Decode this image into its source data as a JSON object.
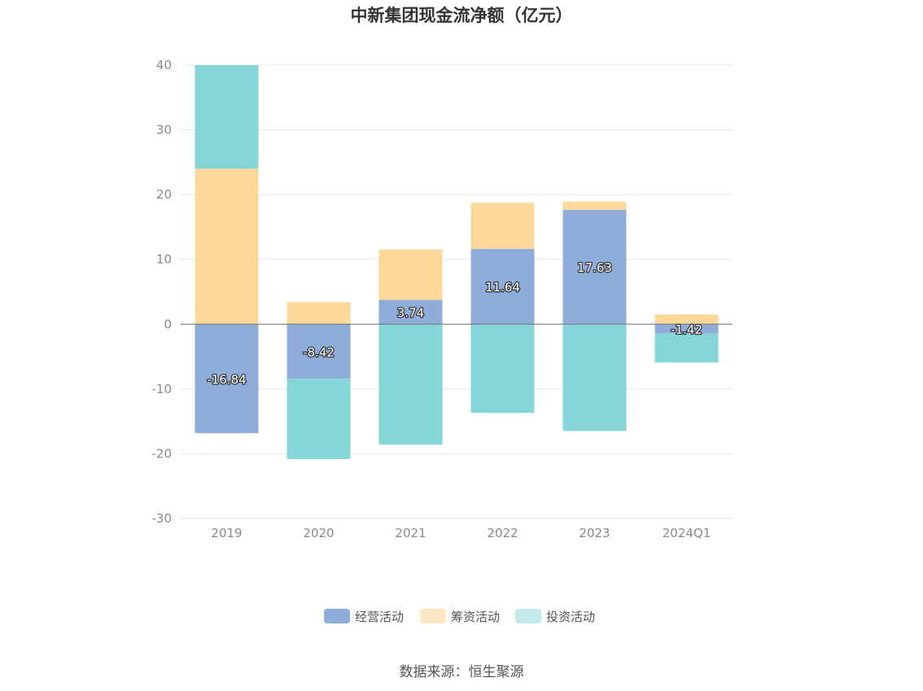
{
  "chart_data": {
    "type": "bar",
    "stacked": true,
    "title": "中新集团现金流净额（亿元）",
    "source": "数据来源：恒生聚源",
    "categories": [
      "2019",
      "2020",
      "2021",
      "2022",
      "2023",
      "2024Q1"
    ],
    "ylim": [
      -30,
      40
    ],
    "yticks": [
      40,
      30,
      20,
      10,
      0,
      -10,
      -20,
      -30
    ],
    "grid": true,
    "legend_position": "bottom-center",
    "series": [
      {
        "name": "经营活动",
        "color": "#8eaddb",
        "values": [
          -16.84,
          -8.42,
          3.74,
          11.64,
          17.63,
          -1.42
        ],
        "labels": [
          "-16.84",
          "-8.42",
          "3.74",
          "11.64",
          "17.63",
          "-1.42"
        ]
      },
      {
        "name": "筹资活动",
        "color": "#fdd899",
        "legend_color": "#fde7c2",
        "values": [
          24.0,
          3.4,
          7.8,
          7.1,
          1.3,
          1.5
        ]
      },
      {
        "name": "投资活动",
        "color": "#86d5d9",
        "legend_color": "#c2eaec",
        "values": [
          16.0,
          -12.4,
          -18.6,
          -13.7,
          -16.5,
          -4.5
        ]
      }
    ]
  }
}
